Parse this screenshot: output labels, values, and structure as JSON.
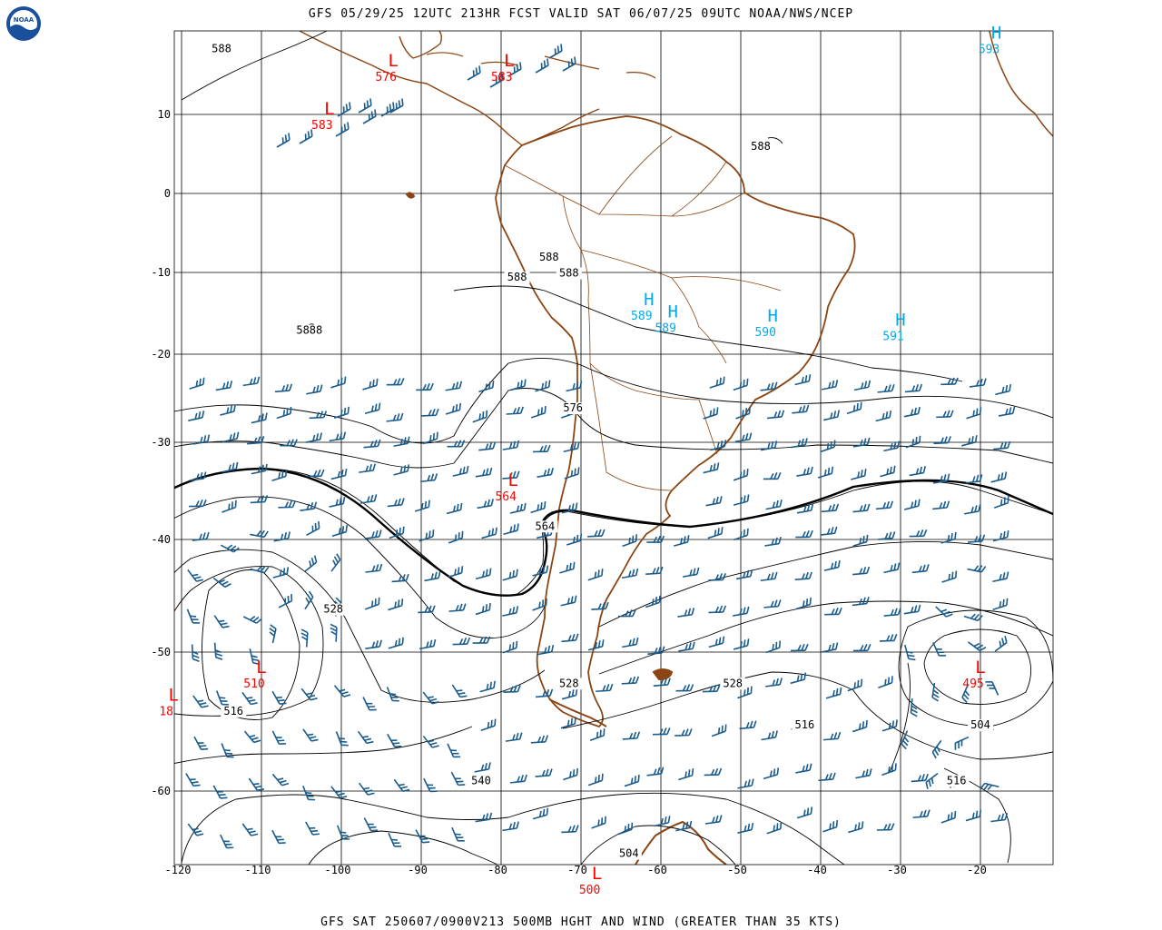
{
  "header": {
    "title": "GFS 05/29/25 12UTC 213HR FCST VALID SAT 06/07/25 09UTC NOAA/NWS/NCEP",
    "logo_text": "NOAA"
  },
  "footer": {
    "title": "GFS SAT 250607/0900V213 500MB HGHT AND WIND (GREATER THAN 35 KTS)"
  },
  "colors": {
    "low": "#ff0000",
    "high": "#00aaee",
    "barb": "#1a5c8c",
    "coast": "#8b4513",
    "contour": "#000000",
    "grid": "#000000"
  },
  "axes": {
    "lon_labels": [
      "-120",
      "-110",
      "-100",
      "-90",
      "-80",
      "-70",
      "-60",
      "-50",
      "-40",
      "-30",
      "-20"
    ],
    "lat_labels": [
      "10",
      "0",
      "-10",
      "-20",
      "-30",
      "-40",
      "-50",
      "-60"
    ]
  },
  "pressure_centers": [
    {
      "type": "L",
      "value": "576",
      "lon": -93.5,
      "lat": 13.5
    },
    {
      "type": "L",
      "value": "583",
      "lon": -79,
      "lat": 13.5
    },
    {
      "type": "L",
      "value": "583",
      "lon": -101.5,
      "lat": 10
    },
    {
      "type": "L",
      "value": "564",
      "lon": -78.5,
      "lat": -34.5
    },
    {
      "type": "L",
      "value": "510",
      "lon": -110,
      "lat": -51.5
    },
    {
      "type": "L",
      "value": "18",
      "lon": -121,
      "lat": -53.5
    },
    {
      "type": "L",
      "value": "495",
      "lon": -20,
      "lat": -51.5
    },
    {
      "type": "L",
      "value": "500",
      "lon": -68,
      "lat": -66
    },
    {
      "type": "H",
      "value": "589",
      "lon": -61.5,
      "lat": -14
    },
    {
      "type": "H",
      "value": "589",
      "lon": -58.5,
      "lat": -15.5
    },
    {
      "type": "H",
      "value": "590",
      "lon": -46,
      "lat": -16
    },
    {
      "type": "H",
      "value": "591",
      "lon": -30,
      "lat": -16.5
    },
    {
      "type": "H",
      "value": "593",
      "lon": -18,
      "lat": 15.5
    }
  ],
  "contour_labels": [
    {
      "text": "588",
      "lon": -115,
      "lat": 14.5
    },
    {
      "text": "588",
      "lon": -47.5,
      "lat": 5.5
    },
    {
      "text": "588",
      "lon": -74,
      "lat": -8.5
    },
    {
      "text": "588",
      "lon": -78,
      "lat": -11
    },
    {
      "text": "588",
      "lon": -71.5,
      "lat": -10.5
    },
    {
      "text": "5888",
      "lon": -104,
      "lat": -17.5
    },
    {
      "text": "576",
      "lon": -71,
      "lat": -26.5
    },
    {
      "text": "564",
      "lon": -74.5,
      "lat": -39
    },
    {
      "text": "528",
      "lon": -101,
      "lat": -46.5
    },
    {
      "text": "516",
      "lon": -113.5,
      "lat": -54.5
    },
    {
      "text": "528",
      "lon": -51,
      "lat": -52.5
    },
    {
      "text": "528",
      "lon": -71.5,
      "lat": -52.5
    },
    {
      "text": "516",
      "lon": -42,
      "lat": -55.5
    },
    {
      "text": "504",
      "lon": -20,
      "lat": -55.5
    },
    {
      "text": "516",
      "lon": -23,
      "lat": -59.5
    },
    {
      "text": "540",
      "lon": -82.5,
      "lat": -59.5
    },
    {
      "text": "504",
      "lon": -64,
      "lat": -64.5
    }
  ]
}
